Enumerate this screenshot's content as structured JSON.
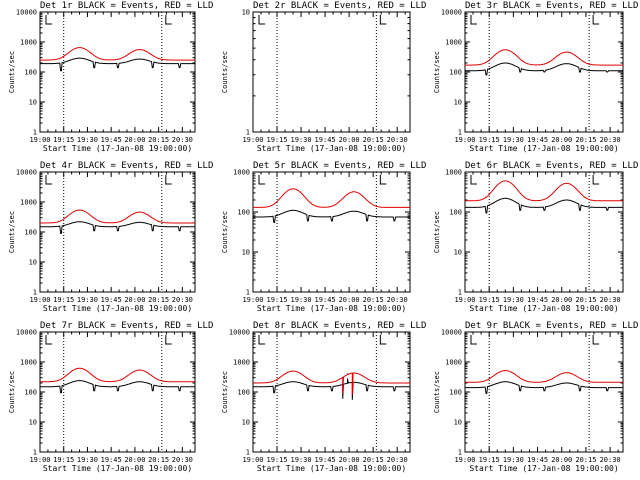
{
  "figure": {
    "x_tick_labels": [
      "19:00",
      "19:15",
      "19:30",
      "19:45",
      "20:00",
      "20:15",
      "20:30"
    ],
    "marker_times_min": [
      15,
      77
    ],
    "colors": {
      "events": "#000000",
      "lld": "#e00000",
      "background": "#ffffff"
    }
  },
  "chart_data": [
    {
      "type": "line",
      "panel": 1,
      "title": "Det 1r BLACK = Events, RED = LLD",
      "xlabel": "Start Time (17-Jan-08 19:00:00)",
      "ylabel": "Counts/sec",
      "yscale": "log",
      "ylim": [
        1,
        10000
      ],
      "y_tick_labels": [
        "1",
        "10",
        "100",
        "1000",
        "10000"
      ],
      "xlim_min": [
        0,
        98
      ],
      "has_data": true,
      "series": [
        {
          "name": "Events",
          "color": "#000000",
          "base": 190,
          "peak1": 290,
          "peak2": 270,
          "drops": [
            [
              13,
              110
            ],
            [
              34,
              140
            ],
            [
              49,
              140
            ],
            [
              71,
              140
            ],
            [
              88,
              140
            ]
          ],
          "spike": null
        },
        {
          "name": "LLD",
          "color": "#e00000",
          "base": 250,
          "peak1": 650,
          "peak2": 560,
          "drops": [],
          "spike": null
        }
      ]
    },
    {
      "type": "line",
      "panel": 2,
      "title": "Det 2r BLACK = Events, RED = LLD",
      "xlabel": "Start Time (17-Jan-08 19:00:00)",
      "ylabel": "Counts/sec",
      "yscale": "log",
      "ylim": [
        1,
        10
      ],
      "y_tick_labels": [
        "1",
        "10"
      ],
      "xlim_min": [
        0,
        98
      ],
      "has_data": false,
      "series": []
    },
    {
      "type": "line",
      "panel": 3,
      "title": "Det 3r BLACK = Events, RED = LLD",
      "xlabel": "Start Time (17-Jan-08 19:00:00)",
      "ylabel": "Counts/sec",
      "yscale": "log",
      "ylim": [
        1,
        10000
      ],
      "y_tick_labels": [
        "1",
        "10",
        "100",
        "1000",
        "10000"
      ],
      "xlim_min": [
        0,
        98
      ],
      "has_data": true,
      "series": [
        {
          "name": "Events",
          "color": "#000000",
          "base": 110,
          "peak1": 200,
          "peak2": 190,
          "drops": [
            [
              13,
              80
            ],
            [
              34,
              100
            ],
            [
              49,
              100
            ],
            [
              71,
              100
            ],
            [
              88,
              100
            ]
          ],
          "spike": null
        },
        {
          "name": "LLD",
          "color": "#e00000",
          "base": 170,
          "peak1": 550,
          "peak2": 460,
          "drops": [],
          "spike": null
        }
      ]
    },
    {
      "type": "line",
      "panel": 4,
      "title": "Det 4r BLACK = Events, RED = LLD",
      "xlabel": "Start Time (17-Jan-08 19:00:00)",
      "ylabel": "Counts/sec",
      "yscale": "log",
      "ylim": [
        1,
        10000
      ],
      "y_tick_labels": [
        "1",
        "10",
        "100",
        "1000",
        "10000"
      ],
      "xlim_min": [
        0,
        98
      ],
      "has_data": true,
      "series": [
        {
          "name": "Events",
          "color": "#000000",
          "base": 150,
          "peak1": 220,
          "peak2": 210,
          "drops": [
            [
              13,
              90
            ],
            [
              34,
              110
            ],
            [
              49,
              110
            ],
            [
              71,
              110
            ],
            [
              88,
              110
            ]
          ],
          "spike": null
        },
        {
          "name": "LLD",
          "color": "#e00000",
          "base": 200,
          "peak1": 540,
          "peak2": 460,
          "drops": [],
          "spike": null
        }
      ]
    },
    {
      "type": "line",
      "panel": 5,
      "title": "Det 5r BLACK = Events, RED = LLD",
      "xlabel": "Start Time (17-Jan-08 19:00:00)",
      "ylabel": "Counts/sec",
      "yscale": "log",
      "ylim": [
        1,
        1000
      ],
      "y_tick_labels": [
        "1",
        "10",
        "100",
        "1000"
      ],
      "xlim_min": [
        0,
        98
      ],
      "has_data": true,
      "series": [
        {
          "name": "Events",
          "color": "#000000",
          "base": 75,
          "peak1": 110,
          "peak2": 105,
          "drops": [
            [
              13,
              55
            ],
            [
              34,
              60
            ],
            [
              49,
              60
            ],
            [
              71,
              60
            ],
            [
              88,
              60
            ]
          ],
          "spike": null
        },
        {
          "name": "LLD",
          "color": "#e00000",
          "base": 130,
          "peak1": 380,
          "peak2": 320,
          "drops": [],
          "spike": null
        }
      ]
    },
    {
      "type": "line",
      "panel": 6,
      "title": "Det 6r BLACK = Events, RED = LLD",
      "xlabel": "Start Time (17-Jan-08 19:00:00)",
      "ylabel": "Counts/sec",
      "yscale": "log",
      "ylim": [
        1,
        1000
      ],
      "y_tick_labels": [
        "1",
        "10",
        "100",
        "1000"
      ],
      "xlim_min": [
        0,
        98
      ],
      "has_data": true,
      "series": [
        {
          "name": "Events",
          "color": "#000000",
          "base": 130,
          "peak1": 220,
          "peak2": 200,
          "drops": [
            [
              13,
              95
            ],
            [
              34,
              110
            ],
            [
              49,
              110
            ],
            [
              71,
              110
            ],
            [
              88,
              110
            ]
          ],
          "spike": null
        },
        {
          "name": "LLD",
          "color": "#e00000",
          "base": 190,
          "peak1": 600,
          "peak2": 520,
          "drops": [],
          "spike": null
        }
      ]
    },
    {
      "type": "line",
      "panel": 7,
      "title": "Det 7r BLACK = Events, RED = LLD",
      "xlabel": "Start Time (17-Jan-08 19:00:00)",
      "ylabel": "Counts/sec",
      "yscale": "log",
      "ylim": [
        1,
        10000
      ],
      "y_tick_labels": [
        "1",
        "10",
        "100",
        "1000",
        "10000"
      ],
      "xlim_min": [
        0,
        98
      ],
      "has_data": true,
      "series": [
        {
          "name": "Events",
          "color": "#000000",
          "base": 150,
          "peak1": 240,
          "peak2": 220,
          "drops": [
            [
              13,
              95
            ],
            [
              34,
              110
            ],
            [
              49,
              110
            ],
            [
              71,
              110
            ],
            [
              88,
              110
            ]
          ],
          "spike": null
        },
        {
          "name": "LLD",
          "color": "#e00000",
          "base": 220,
          "peak1": 620,
          "peak2": 540,
          "drops": [],
          "spike": null
        }
      ]
    },
    {
      "type": "line",
      "panel": 8,
      "title": "Det 8r BLACK = Events, RED = LLD",
      "xlabel": "Start Time (17-Jan-08 19:00:00)",
      "ylabel": "Counts/sec",
      "yscale": "log",
      "ylim": [
        1,
        10000
      ],
      "y_tick_labels": [
        "1",
        "10",
        "100",
        "1000",
        "10000"
      ],
      "xlim_min": [
        0,
        98
      ],
      "has_data": true,
      "series": [
        {
          "name": "Events",
          "color": "#000000",
          "base": 150,
          "peak1": 220,
          "peak2": 210,
          "drops": [
            [
              13,
              95
            ],
            [
              34,
              110
            ],
            [
              49,
              110
            ],
            [
              71,
              110
            ],
            [
              88,
              110
            ]
          ],
          "spike": [
            [
              56,
              60
            ],
            [
              59,
              280
            ],
            [
              62,
              55
            ]
          ]
        },
        {
          "name": "LLD",
          "color": "#e00000",
          "base": 200,
          "peak1": 500,
          "peak2": 430,
          "drops": [],
          "spike": [
            [
              56,
              90
            ],
            [
              59,
              400
            ],
            [
              62,
              80
            ]
          ]
        }
      ]
    },
    {
      "type": "line",
      "panel": 9,
      "title": "Det 9r BLACK = Events, RED = LLD",
      "xlabel": "Start Time (17-Jan-08 19:00:00)",
      "ylabel": "Counts/sec",
      "yscale": "log",
      "ylim": [
        1,
        10000
      ],
      "y_tick_labels": [
        "1",
        "10",
        "100",
        "1000",
        "10000"
      ],
      "xlim_min": [
        0,
        98
      ],
      "has_data": true,
      "series": [
        {
          "name": "Events",
          "color": "#000000",
          "base": 140,
          "peak1": 220,
          "peak2": 200,
          "drops": [
            [
              13,
              90
            ],
            [
              34,
              110
            ],
            [
              49,
              110
            ],
            [
              71,
              110
            ],
            [
              88,
              110
            ]
          ],
          "spike": null
        },
        {
          "name": "LLD",
          "color": "#e00000",
          "base": 210,
          "peak1": 520,
          "peak2": 440,
          "drops": [],
          "spike": null
        }
      ]
    }
  ]
}
